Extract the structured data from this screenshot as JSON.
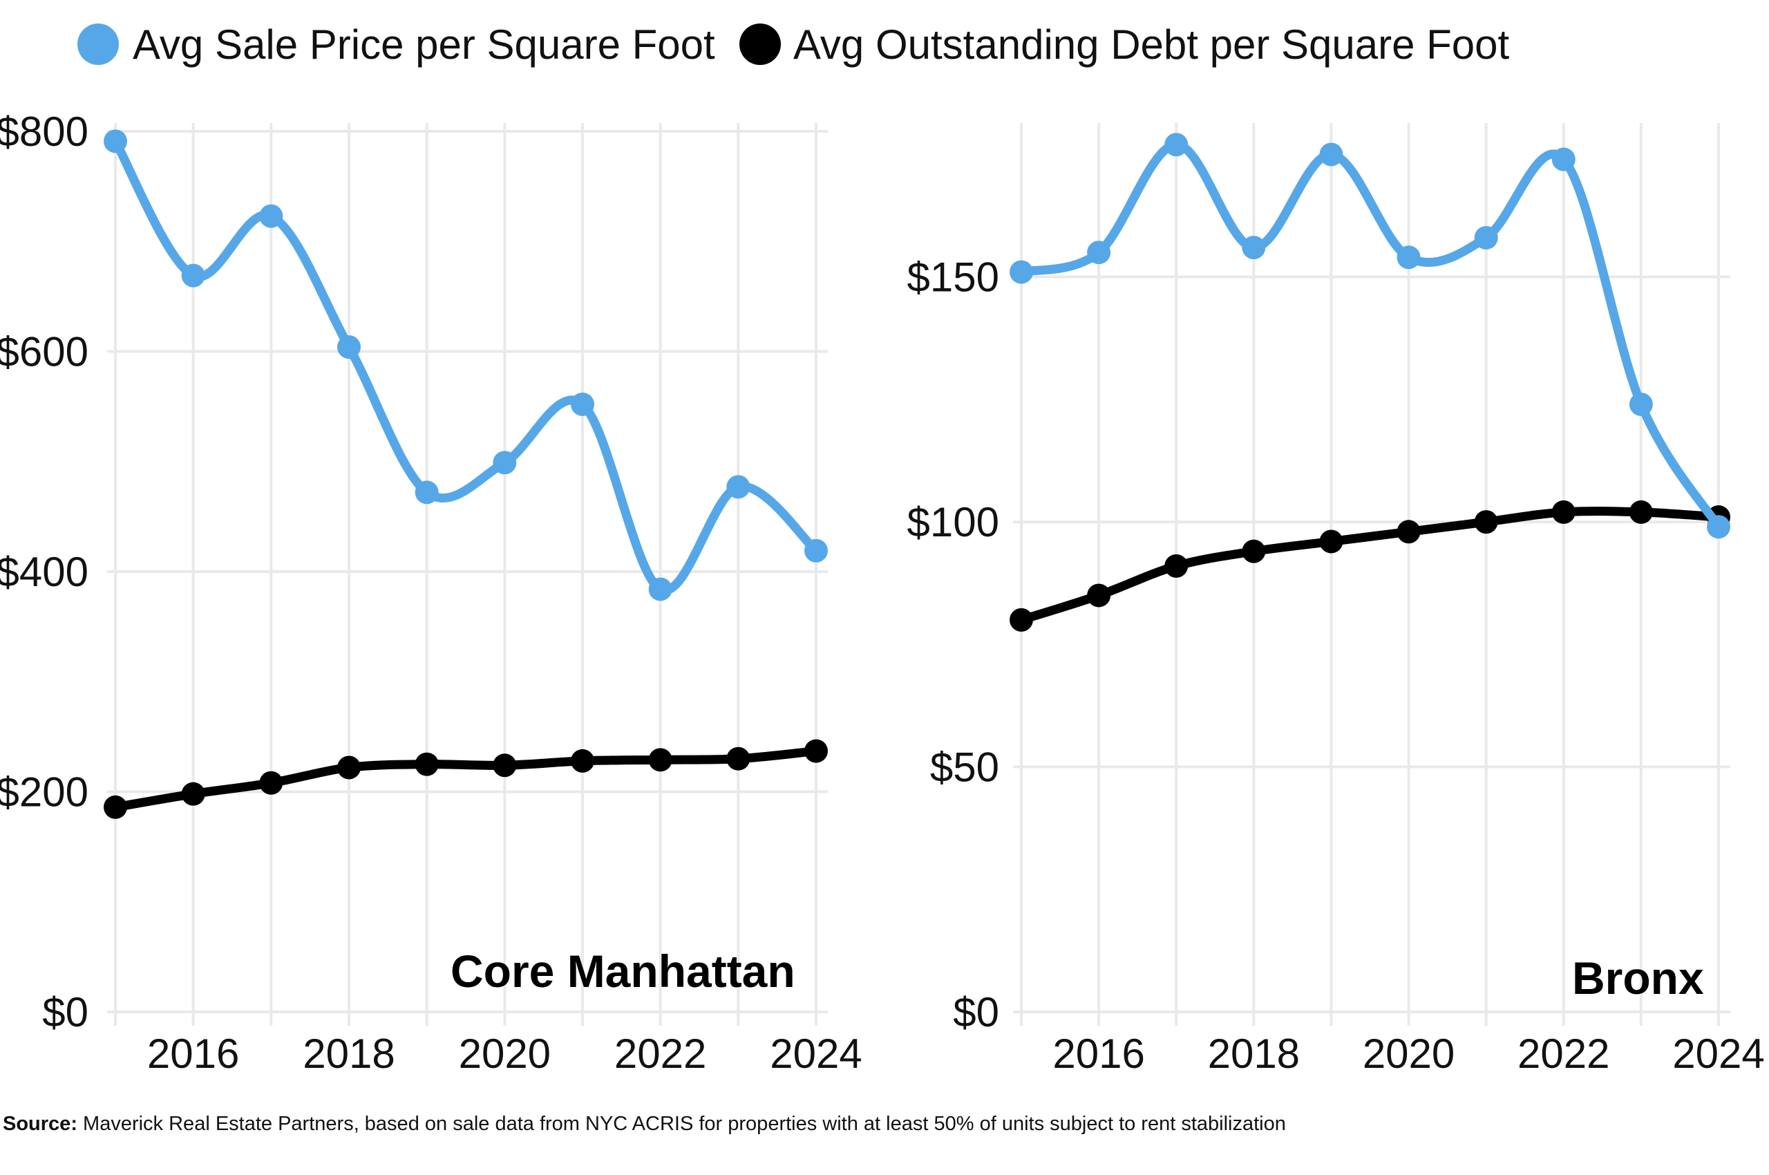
{
  "legend": [
    {
      "label": "Avg Sale Price per Square Foot",
      "color": "#56a7e8"
    },
    {
      "label": "Avg Outstanding Debt per Square Foot",
      "color": "#000000"
    }
  ],
  "source": {
    "label": "Source:",
    "text": "Maverick Real Estate Partners, based on sale data from NYC ACRIS for properties with at least 50% of units subject to rent stabilization"
  },
  "chart_data": [
    {
      "type": "line",
      "panel_label": "Core Manhattan",
      "x": [
        2015,
        2016,
        2017,
        2018,
        2019,
        2020,
        2021,
        2022,
        2023,
        2024
      ],
      "xlim": [
        2015,
        2024
      ],
      "xticks": [
        "2016",
        "2018",
        "2020",
        "2022",
        "2024"
      ],
      "ylim": [
        0,
        800
      ],
      "yticks": [
        "$0",
        "$200",
        "$400",
        "$600",
        "$800"
      ],
      "ytick_values": [
        0,
        200,
        400,
        600,
        800
      ],
      "grid": true,
      "legend_position": "top",
      "series": [
        {
          "name": "Avg Sale Price per Square Foot",
          "color": "#56a7e8",
          "values": [
            791,
            669,
            723,
            604,
            472,
            499,
            552,
            384,
            477,
            419
          ]
        },
        {
          "name": "Avg Outstanding Debt per Square Foot",
          "color": "#000000",
          "values": [
            186,
            198,
            208,
            222,
            225,
            224,
            228,
            229,
            230,
            237
          ]
        }
      ]
    },
    {
      "type": "line",
      "panel_label": "Bronx",
      "x": [
        2015,
        2016,
        2017,
        2018,
        2019,
        2020,
        2021,
        2022,
        2023,
        2024
      ],
      "xlim": [
        2015,
        2024
      ],
      "xticks": [
        "2016",
        "2018",
        "2020",
        "2022",
        "2024"
      ],
      "ylim": [
        0,
        180
      ],
      "yticks": [
        "$0",
        "$50",
        "$100",
        "$150"
      ],
      "ytick_values": [
        0,
        50,
        100,
        150
      ],
      "grid": true,
      "legend_position": "top",
      "series": [
        {
          "name": "Avg Sale Price per Square Foot",
          "color": "#56a7e8",
          "values": [
            151,
            155,
            177,
            156,
            175,
            154,
            158,
            174,
            124,
            99
          ]
        },
        {
          "name": "Avg Outstanding Debt per Square Foot",
          "color": "#000000",
          "values": [
            80,
            85,
            91,
            94,
            96,
            98,
            100,
            102,
            102,
            101
          ]
        }
      ]
    }
  ]
}
